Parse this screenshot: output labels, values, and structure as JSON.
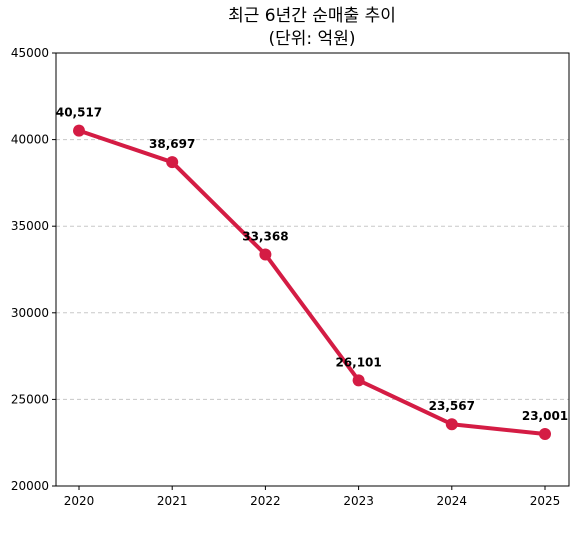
{
  "chart_data": {
    "type": "line",
    "title_line1": "최근 6년간 순매출 추이",
    "title_line2": "(단위: 억원)",
    "xlabel": "",
    "ylabel": "",
    "x": [
      "2020",
      "2021",
      "2022",
      "2023",
      "2024",
      "2025"
    ],
    "values": [
      40517,
      38697,
      33368,
      26101,
      23567,
      23001
    ],
    "data_labels": [
      "40,517",
      "38,697",
      "33,368",
      "26,101",
      "23,567",
      "23,001"
    ],
    "ylim": [
      20000,
      45000
    ],
    "yticks": [
      "20000",
      "25000",
      "30000",
      "35000",
      "40000",
      "45000"
    ],
    "grid": "y-dashed",
    "line_color": "#d41c44"
  }
}
